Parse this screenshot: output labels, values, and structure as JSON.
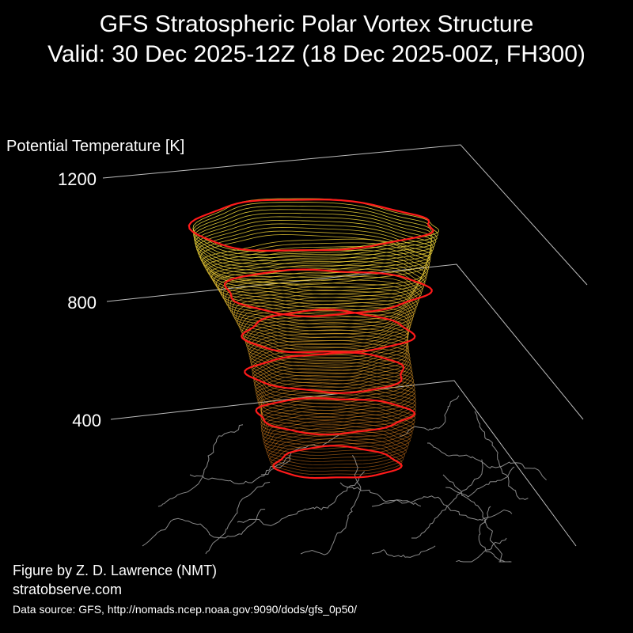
{
  "title": {
    "line1": "GFS Stratospheric Polar Vortex Structure",
    "line2": "Valid: 30 Dec 2025-12Z  (18 Dec 2025-00Z, FH300)"
  },
  "axis": {
    "label": "Potential Temperature [K]",
    "ticks": [
      "1200",
      "800",
      "400"
    ]
  },
  "colors": {
    "background": "#000000",
    "text": "#ffffff",
    "gridline": "#bbbbbb",
    "map_coastline": "#8a8a8a",
    "vortex_low": "#d9741a",
    "vortex_high": "#e8d63a",
    "highlight_contour": "#ff1a1a"
  },
  "credits": {
    "author": "Figure by Z. D. Lawrence (NMT)",
    "website": "stratobserve.com",
    "source": "Data source: GFS, http://nomads.ncep.noaa.gov:9090/dods/gfs_0p50/"
  }
}
